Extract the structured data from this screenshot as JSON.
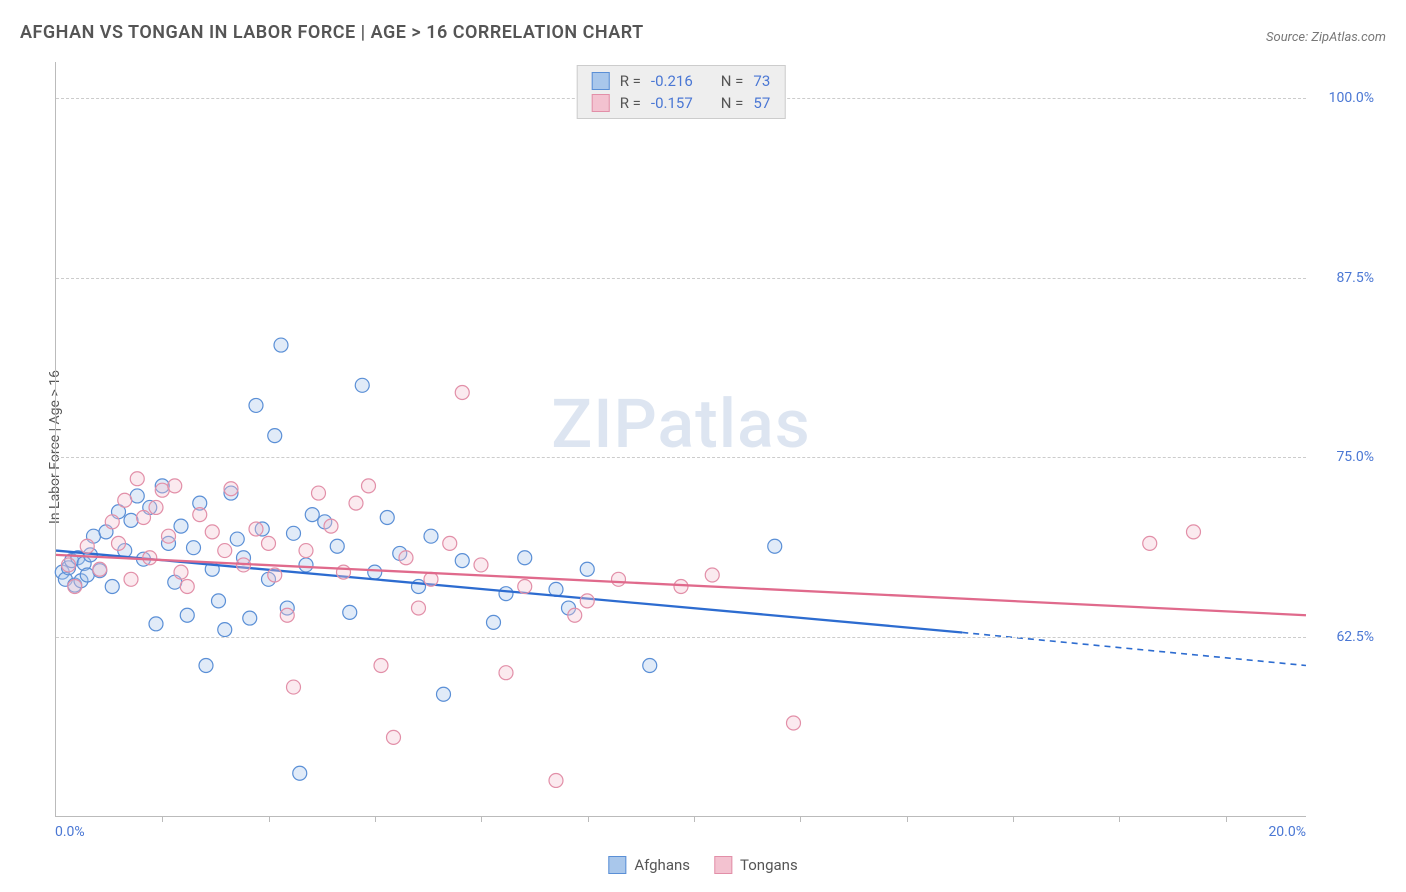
{
  "title": "AFGHAN VS TONGAN IN LABOR FORCE | AGE > 16 CORRELATION CHART",
  "source": "Source: ZipAtlas.com",
  "watermark": "ZIPatlas",
  "y_axis_label": "In Labor Force | Age > 16",
  "chart": {
    "type": "scatter",
    "xlim": [
      0,
      20
    ],
    "ylim": [
      50,
      102.5
    ],
    "y_gridlines": [
      62.5,
      75.0,
      87.5,
      100.0
    ],
    "y_tick_labels": [
      "62.5%",
      "75.0%",
      "87.5%",
      "100.0%"
    ],
    "x_ticks": [
      0,
      20
    ],
    "x_tick_labels": [
      "0.0%",
      "20.0%"
    ],
    "x_minor_ticks": [
      1.7,
      3.4,
      5.1,
      6.8,
      8.5,
      10.2,
      11.9,
      13.6,
      15.3,
      17.0,
      18.7
    ],
    "grid_color": "#cccccc",
    "background_color": "#ffffff",
    "tick_label_color": "#4a77d4",
    "axis_color": "#bbbbbb",
    "marker_radius": 7,
    "marker_fill_opacity": 0.35,
    "marker_stroke_width": 1.2,
    "line_width": 2.3,
    "series": [
      {
        "name": "Afghans",
        "color_stroke": "#5a8fd6",
        "color_fill": "#a9c7eb",
        "line_color": "#2d6cd0",
        "R": "-0.216",
        "N": "73",
        "trend": {
          "x1": 0,
          "y1": 68.5,
          "x2": 14.5,
          "y2": 62.8,
          "dash_to_x": 20,
          "dash_to_y": 60.5
        },
        "points": [
          [
            0.1,
            67.0
          ],
          [
            0.15,
            66.5
          ],
          [
            0.2,
            67.3
          ],
          [
            0.25,
            67.8
          ],
          [
            0.3,
            66.1
          ],
          [
            0.35,
            68.0
          ],
          [
            0.4,
            66.4
          ],
          [
            0.45,
            67.6
          ],
          [
            0.5,
            66.8
          ],
          [
            0.55,
            68.2
          ],
          [
            0.6,
            69.5
          ],
          [
            0.7,
            67.1
          ],
          [
            0.8,
            69.8
          ],
          [
            0.9,
            66.0
          ],
          [
            1.0,
            71.2
          ],
          [
            1.1,
            68.5
          ],
          [
            1.2,
            70.6
          ],
          [
            1.3,
            72.3
          ],
          [
            1.4,
            67.9
          ],
          [
            1.5,
            71.5
          ],
          [
            1.6,
            63.4
          ],
          [
            1.7,
            73.0
          ],
          [
            1.8,
            69.0
          ],
          [
            1.9,
            66.3
          ],
          [
            2.0,
            70.2
          ],
          [
            2.1,
            64.0
          ],
          [
            2.2,
            68.7
          ],
          [
            2.3,
            71.8
          ],
          [
            2.4,
            60.5
          ],
          [
            2.5,
            67.2
          ],
          [
            2.6,
            65.0
          ],
          [
            2.7,
            63.0
          ],
          [
            2.8,
            72.5
          ],
          [
            2.9,
            69.3
          ],
          [
            3.0,
            68.0
          ],
          [
            3.1,
            63.8
          ],
          [
            3.2,
            78.6
          ],
          [
            3.3,
            70.0
          ],
          [
            3.4,
            66.5
          ],
          [
            3.5,
            76.5
          ],
          [
            3.6,
            82.8
          ],
          [
            3.7,
            64.5
          ],
          [
            3.8,
            69.7
          ],
          [
            3.9,
            53.0
          ],
          [
            4.0,
            67.5
          ],
          [
            4.1,
            71.0
          ],
          [
            4.3,
            70.5
          ],
          [
            4.5,
            68.8
          ],
          [
            4.7,
            64.2
          ],
          [
            4.9,
            80.0
          ],
          [
            5.1,
            67.0
          ],
          [
            5.3,
            70.8
          ],
          [
            5.5,
            68.3
          ],
          [
            5.8,
            66.0
          ],
          [
            6.0,
            69.5
          ],
          [
            6.2,
            58.5
          ],
          [
            6.5,
            67.8
          ],
          [
            7.0,
            63.5
          ],
          [
            7.2,
            65.5
          ],
          [
            7.5,
            68.0
          ],
          [
            8.0,
            65.8
          ],
          [
            8.2,
            64.5
          ],
          [
            8.5,
            67.2
          ],
          [
            9.5,
            60.5
          ],
          [
            11.5,
            68.8
          ]
        ]
      },
      {
        "name": "Tongans",
        "color_stroke": "#e28fa8",
        "color_fill": "#f3c2d0",
        "line_color": "#e06a8c",
        "R": "-0.157",
        "N": "57",
        "trend": {
          "x1": 0,
          "y1": 68.2,
          "x2": 20,
          "y2": 64.0
        },
        "points": [
          [
            0.2,
            67.5
          ],
          [
            0.3,
            66.0
          ],
          [
            0.5,
            68.8
          ],
          [
            0.7,
            67.2
          ],
          [
            0.9,
            70.5
          ],
          [
            1.0,
            69.0
          ],
          [
            1.1,
            72.0
          ],
          [
            1.2,
            66.5
          ],
          [
            1.3,
            73.5
          ],
          [
            1.4,
            70.8
          ],
          [
            1.5,
            68.0
          ],
          [
            1.6,
            71.5
          ],
          [
            1.7,
            72.7
          ],
          [
            1.8,
            69.5
          ],
          [
            1.9,
            73.0
          ],
          [
            2.0,
            67.0
          ],
          [
            2.1,
            66.0
          ],
          [
            2.3,
            71.0
          ],
          [
            2.5,
            69.8
          ],
          [
            2.7,
            68.5
          ],
          [
            2.8,
            72.8
          ],
          [
            3.0,
            67.5
          ],
          [
            3.2,
            70.0
          ],
          [
            3.4,
            69.0
          ],
          [
            3.5,
            66.8
          ],
          [
            3.7,
            64.0
          ],
          [
            3.8,
            59.0
          ],
          [
            4.0,
            68.5
          ],
          [
            4.2,
            72.5
          ],
          [
            4.4,
            70.2
          ],
          [
            4.6,
            67.0
          ],
          [
            4.8,
            71.8
          ],
          [
            5.0,
            73.0
          ],
          [
            5.2,
            60.5
          ],
          [
            5.4,
            55.5
          ],
          [
            5.6,
            68.0
          ],
          [
            5.8,
            64.5
          ],
          [
            6.0,
            66.5
          ],
          [
            6.3,
            69.0
          ],
          [
            6.5,
            79.5
          ],
          [
            6.8,
            67.5
          ],
          [
            7.2,
            60.0
          ],
          [
            7.5,
            66.0
          ],
          [
            8.0,
            52.5
          ],
          [
            8.3,
            64.0
          ],
          [
            8.5,
            65.0
          ],
          [
            9.0,
            66.5
          ],
          [
            10.0,
            66.0
          ],
          [
            10.5,
            66.8
          ],
          [
            11.8,
            56.5
          ],
          [
            17.5,
            69.0
          ],
          [
            18.2,
            69.8
          ]
        ]
      }
    ]
  },
  "legend_top": {
    "R_label": "R =",
    "N_label": "N ="
  },
  "legend_bottom": [
    {
      "label": "Afghans"
    },
    {
      "label": "Tongans"
    }
  ]
}
